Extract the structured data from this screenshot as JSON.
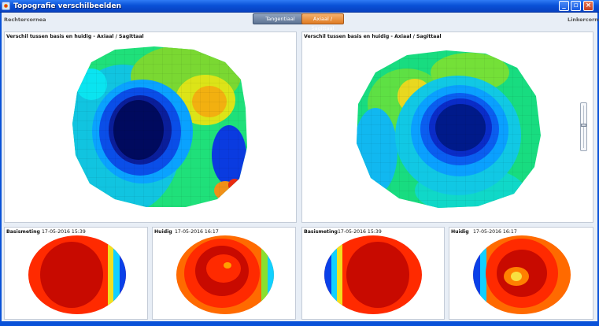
{
  "window": {
    "title": "Topografie verschilbeelden",
    "minimize_icon": "minimize-icon",
    "maximize_icon": "restore-icon",
    "close_icon": "close-icon"
  },
  "header": {
    "left_label": "Rechtercornea",
    "right_label": "Linkercornea",
    "tab_tangential": "Tangentiaal",
    "tab_axial": "Axiaal / Sagittaal"
  },
  "colors": {
    "accent_orange": "#e07c24",
    "tab_inactive": "#5d7393",
    "titlebar_blue": "#0a52d8"
  },
  "big_panels": [
    {
      "title": "Verschil tussen basis en huidig - Axiaal / Sagittaal",
      "map": "difference-map-right"
    },
    {
      "title": "Verschil tussen basis en huidig - Axiaal / Sagittaal",
      "map": "difference-map-left"
    }
  ],
  "small_panels": [
    {
      "title": "Basismeting",
      "date": "17-05-2016 15:39"
    },
    {
      "title": "Huidig",
      "date": "17-05-2016 16:17"
    },
    {
      "title": "Basismeting",
      "date": "17-05-2016 15:39"
    },
    {
      "title": "Huidig",
      "date": "17-05-2016 16:17"
    }
  ]
}
